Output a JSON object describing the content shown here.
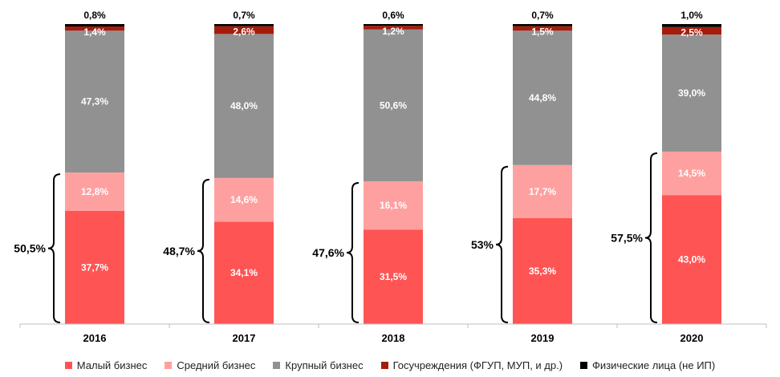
{
  "chart_data": {
    "type": "bar",
    "stacked": true,
    "categories": [
      "2016",
      "2017",
      "2018",
      "2019",
      "2020"
    ],
    "series": [
      {
        "name": "Малый бизнес",
        "color": "#ff5454",
        "labelColor": "#ffffff",
        "values": [
          37.7,
          34.1,
          31.5,
          35.3,
          43.0
        ],
        "labels": [
          "37,7%",
          "34,1%",
          "31,5%",
          "35,3%",
          "43,0%"
        ]
      },
      {
        "name": "Средний бизнес",
        "color": "#ffa0a0",
        "labelColor": "#ffffff",
        "values": [
          12.8,
          14.6,
          16.1,
          17.7,
          14.5
        ],
        "labels": [
          "12,8%",
          "14,6%",
          "16,1%",
          "17,7%",
          "14,5%"
        ]
      },
      {
        "name": "Крупный бизнес",
        "color": "#919191",
        "labelColor": "#ffffff",
        "values": [
          47.3,
          48.0,
          50.6,
          44.8,
          39.0
        ],
        "labels": [
          "47,3%",
          "48,0%",
          "50,6%",
          "44,8%",
          "39,0%"
        ]
      },
      {
        "name": "Госучреждения (ФГУП,  МУП, и др.)",
        "color": "#a61c0c",
        "labelColor": "#ffffff",
        "values": [
          1.4,
          2.6,
          1.2,
          1.5,
          2.5
        ],
        "labels": [
          "1,4%",
          "2,6%",
          "1,2%",
          "1,5%",
          "2,5%"
        ]
      },
      {
        "name": "Физические лица (не ИП)",
        "color": "#000000",
        "labelColor": "#000000",
        "values": [
          0.8,
          0.7,
          0.6,
          0.7,
          1.0
        ],
        "labels": [
          "0,8%",
          "0,7%",
          "0,6%",
          "0,7%",
          "1,0%"
        ]
      }
    ],
    "brace_labels": [
      "50,5%",
      "48,7%",
      "47,6%",
      "53%",
      "57,5%"
    ],
    "ylim": [
      0,
      100
    ],
    "legend_position": "bottom",
    "grid": false
  }
}
